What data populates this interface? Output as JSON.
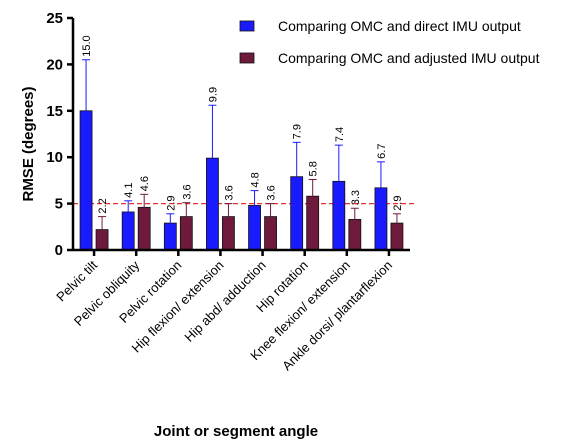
{
  "chart_data": {
    "type": "bar",
    "categories": [
      "Pelvic tilt",
      "Pelvic obliquity",
      "Pelvic rotation",
      "Hip flexion/ extension",
      "Hip abd/ adduction",
      "Hip rotation",
      "Knee flexion/ extension",
      "Ankle dorsi/ plantarflexion"
    ],
    "series": [
      {
        "name": "Comparing OMC and direct IMU output",
        "color": "#1a1aff",
        "values": [
          15.0,
          4.1,
          2.9,
          9.9,
          4.8,
          7.9,
          7.4,
          6.7
        ],
        "labels": [
          "15.0",
          "4.1",
          "2.9",
          "9.9",
          "4.8",
          "7.9",
          "7.4",
          "6.7"
        ],
        "error_upper": [
          20.5,
          5.3,
          3.9,
          15.6,
          6.4,
          11.6,
          11.3,
          9.5
        ]
      },
      {
        "name": "Comparing OMC and adjusted IMU output",
        "color": "#6e1a3c",
        "values": [
          2.2,
          4.6,
          3.6,
          3.6,
          3.6,
          5.8,
          3.3,
          2.9
        ],
        "labels": [
          "2.2",
          "4.6",
          "3.6",
          "3.6",
          "3.6",
          "5.8",
          "3.3",
          "2.9"
        ],
        "error_upper": [
          3.6,
          6.0,
          5.1,
          5.0,
          5.0,
          7.6,
          4.5,
          3.9
        ]
      }
    ],
    "xlabel": "Joint or segment angle",
    "ylabel": "RMSE (degrees)",
    "ylim": [
      0,
      25
    ],
    "yticks": [
      0,
      5,
      10,
      15,
      20,
      25
    ],
    "reference_line": {
      "value": 5,
      "color": "#e53030",
      "style": "dashed"
    },
    "legend_position": "top-right",
    "grid": false
  }
}
